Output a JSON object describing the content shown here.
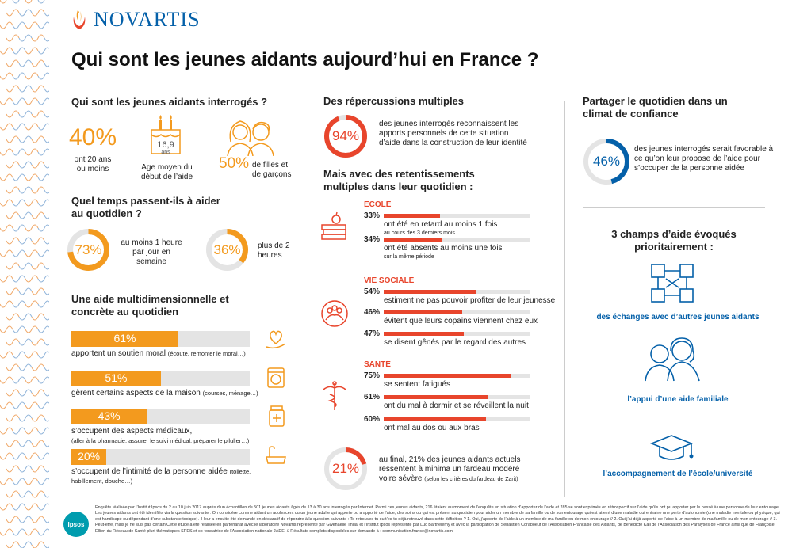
{
  "brand": {
    "name": "NOVARTIS",
    "partner": "Ipsos"
  },
  "title": "Qui sont les jeunes aidants aujourd’hui en France ?",
  "colors": {
    "orange": "#f39a1e",
    "red": "#e8452c",
    "blue": "#0460a9",
    "grey": "#e4e4e4"
  },
  "col1": {
    "who": {
      "heading": "Qui sont les jeunes aidants interrogés ?",
      "stat1_value": "40%",
      "stat1_text": "ont 20 ans ou moins",
      "cake_value": "16,9",
      "cake_unit": "ans",
      "stat2_text": "Age moyen du début de l’aide",
      "stat3_value": "50%",
      "stat3_text": "de filles et de garçons"
    },
    "time": {
      "heading": "Quel temps passent-ils à aider au quotidien ?",
      "ring1": {
        "value": "73%",
        "fraction": 0.73,
        "text": "au moins 1 heure par jour en semaine"
      },
      "ring2": {
        "value": "36%",
        "fraction": 0.36,
        "text": "plus de 2 heures"
      }
    },
    "help": {
      "heading": "Une aide multidimensionnelle et concrète au quotidien",
      "items": [
        {
          "value": "61%",
          "fraction": 0.61,
          "main": "apportent un soutien moral",
          "detail": "(écoute, remonter le moral…)",
          "icon": "heart-hand-icon"
        },
        {
          "value": "51%",
          "fraction": 0.51,
          "main": "gèrent certains aspects de la maison",
          "detail": "(courses, ménage…)",
          "icon": "washing-machine-icon"
        },
        {
          "value": "43%",
          "fraction": 0.43,
          "main": "s’occupent des aspects médicaux,",
          "detail": "(aller à la pharmacie, assurer le suivi médical, préparer le pilulier…)",
          "icon": "medicine-bottle-icon"
        },
        {
          "value": "20%",
          "fraction": 0.2,
          "main": "s’occupent de l’intimité de la personne aidée",
          "detail": "(toilette, habillement, douche…)",
          "icon": "bathtub-icon"
        }
      ]
    }
  },
  "col2": {
    "rep": {
      "heading": "Des répercussions multiples",
      "ring": {
        "value": "94%",
        "fraction": 0.94,
        "text": "des jeunes interrogés reconnaissent les apports personnels de cette situation d’aide dans la construction de leur identité"
      }
    },
    "impact_heading": "Mais avec des retentissements multiples dans leur quotidien :",
    "sections": [
      {
        "label": "ECOLE",
        "icon": "books-apple-icon",
        "items": [
          {
            "pct": "33%",
            "fraction": 0.33,
            "text": "ont été en retard au moins 1 fois",
            "sub": "au cours des 3 derniers mois"
          },
          {
            "pct": "34%",
            "fraction": 0.34,
            "text": "ont été absents au moins une fois",
            "sub": "sur la même période"
          }
        ]
      },
      {
        "label": "VIE SOCIALE",
        "icon": "group-circle-icon",
        "items": [
          {
            "pct": "54%",
            "fraction": 0.54,
            "text": "estiment ne pas pouvoir profiter de leur jeunesse",
            "sub": ""
          },
          {
            "pct": "46%",
            "fraction": 0.46,
            "text": "évitent que leurs copains viennent chez eux",
            "sub": ""
          },
          {
            "pct": "47%",
            "fraction": 0.47,
            "text": "se disent gênés par le regard des autres",
            "sub": ""
          }
        ]
      },
      {
        "label": "SANTÉ",
        "icon": "caduceus-icon",
        "items": [
          {
            "pct": "75%",
            "fraction": 0.75,
            "text": "se sentent fatigués",
            "sub": ""
          },
          {
            "pct": "61%",
            "fraction": 0.61,
            "text": "ont du mal à dormir et se réveillent la nuit",
            "sub": ""
          },
          {
            "pct": "60%",
            "fraction": 0.6,
            "text": "ont mal au dos ou aux bras",
            "sub": ""
          }
        ]
      }
    ],
    "final": {
      "value": "21%",
      "fraction": 0.21,
      "text": "au final, 21% des jeunes aidants actuels ressentent à minima un fardeau modéré voire sévère",
      "detail": "(selon les critères du fardeau de Zarit)"
    }
  },
  "col3": {
    "share": {
      "heading": "Partager le quotidien dans un climat de confiance",
      "ring": {
        "value": "46%",
        "fraction": 0.46,
        "text": "des jeunes interrogés serait favorable à ce qu’on leur propose de l’aide pour s’occuper de la personne aidée"
      }
    },
    "fields": {
      "heading": "3 champs d’aide évoqués prioritairement :",
      "items": [
        {
          "label": "des échanges avec d’autres jeunes aidants",
          "icon": "connected-hands-icon"
        },
        {
          "label": "l’appui d’une aide familiale",
          "icon": "two-people-icon"
        },
        {
          "label": "l’accompagnement de l’école/université",
          "icon": "graduation-cap-icon"
        }
      ]
    }
  },
  "footnote": "Enquête réalisée par l’Institut Ipsos du 2 au 10 juin 2017 auprès d’un échantillon de 501 jeunes aidants âgés de 13 à 30 ans interrogés par Internet. Parmi ces jeunes aidants, 216 étaient au moment de l’enquête en situation d’apporter de l’aide et 285 se sont exprimés en rétrospectif sur l’aide qu’ils ont pu apporter par le passé à une personne de leur entourage. Les jeunes aidants ont été identifiés via la question suivante : On considère comme aidant un adolescent ou un jeune adulte qui apporte ou a apporté de l’aide, des soins ou qui est présent au quotidien pour aider un membre de sa famille ou de son entourage qui est atteint d’une maladie qui entraine une perte d’autonomie (une maladie mentale ou physique, qui est handicapé ou dépendant d’une substance toxique). Il leur a ensuite été demandé en déclaratif de répondre à la question suivante : Te retrouves tu ou t’es-tu déjà retrouvé dans cette définition ? 1. Oui, j’apporte de l’aide à un membre de ma famille ou de mon entourage // 2. Oui j’ai déjà apporté de l’aide à un membre de ma famille ou de mon entourage // 3. Peut-être, mais je ne suis pas certain Cette étude a été réalisée en partenariat avec le laboratoire Novartis représenté par Gwenaëlle Thual et l’Institut Ipsos représenté par Luc Barthélémy et avec la participation de Sébastien Coraboeuf de l’Association Française des Aidants, de Bénédicte Kail de l’Association des Paralysés de France ainsi que de Françoise Ellien du Réseau de Santé pluri-thématiques SPES et co-fondatrice de l’Association nationale JADE. // Résultats complets disponibles sur demande à : communication.france@novartis.com"
}
